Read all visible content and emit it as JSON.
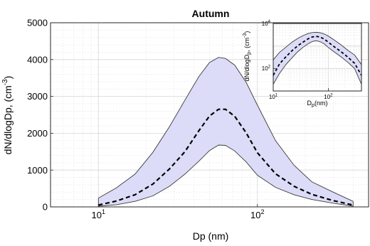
{
  "colors": {
    "band_fill": "#dcdcf8",
    "band_edge": "#3a3a3a",
    "median": "#000000",
    "grid_major": "#d6d6d6",
    "grid_minor": "#ececec",
    "axis": "#262626"
  },
  "chart_data": [
    {
      "type": "area",
      "title": "Autumn",
      "xlabel": "Dp (nm)",
      "ylabel": "dN/dlogDp, (cm",
      "ylabel_sup": "-3",
      "ylabel_close": ")",
      "xscale": "log",
      "yscale": "linear",
      "xlim": [
        5,
        500
      ],
      "ylim": [
        0,
        5000
      ],
      "grid": true,
      "xticks": [
        {
          "value": 10,
          "base": "10",
          "exp": "1"
        },
        {
          "value": 100,
          "base": "10",
          "exp": "2"
        }
      ],
      "yticks": [
        {
          "value": 0,
          "label": "0"
        },
        {
          "value": 1000,
          "label": "1000"
        },
        {
          "value": 2000,
          "label": "2000"
        },
        {
          "value": 3000,
          "label": "3000"
        },
        {
          "value": 4000,
          "label": "4000"
        },
        {
          "value": 5000,
          "label": "5000"
        }
      ],
      "x": [
        10,
        13,
        17,
        22,
        28,
        35,
        43,
        50,
        57,
        63,
        72,
        85,
        100,
        130,
        170,
        220,
        300,
        400
      ],
      "upper": [
        240,
        520,
        890,
        1480,
        2180,
        2900,
        3550,
        3920,
        4060,
        4030,
        3850,
        3380,
        2760,
        1800,
        1130,
        680,
        400,
        150
      ],
      "median": [
        50,
        160,
        330,
        620,
        1030,
        1500,
        2080,
        2470,
        2650,
        2650,
        2460,
        2010,
        1470,
        900,
        560,
        340,
        170,
        50
      ],
      "lower": [
        20,
        60,
        150,
        300,
        560,
        890,
        1250,
        1530,
        1680,
        1670,
        1520,
        1220,
        860,
        530,
        330,
        200,
        100,
        20
      ]
    },
    {
      "type": "area",
      "title": "",
      "xlabel_base": "D",
      "xlabel_sub": "p",
      "xlabel_rest": "(nm)",
      "ylabel_text": "dN/dlogD",
      "ylabel_sub": "p",
      "ylabel_rest": ", (cm",
      "ylabel_sup": "-3",
      "ylabel_close": ")",
      "xscale": "log",
      "yscale": "log",
      "xlim": [
        10,
        400
      ],
      "ylim": [
        10,
        10000
      ],
      "grid": true,
      "xticks": [
        {
          "value": 10,
          "base": "10",
          "exp": "1"
        },
        {
          "value": 100,
          "base": "10",
          "exp": "2"
        }
      ],
      "yticks": [
        {
          "value": 100,
          "base": "10",
          "exp": "2"
        },
        {
          "value": 10000,
          "base": "10",
          "exp": "4"
        }
      ],
      "x": [
        10,
        13,
        17,
        22,
        28,
        35,
        43,
        50,
        57,
        63,
        72,
        85,
        100,
        130,
        170,
        220,
        300,
        400
      ],
      "upper": [
        240,
        520,
        890,
        1480,
        2180,
        2900,
        3550,
        3920,
        4060,
        4030,
        3850,
        3380,
        2760,
        1800,
        1130,
        680,
        400,
        150
      ],
      "median": [
        50,
        160,
        330,
        620,
        1030,
        1500,
        2080,
        2470,
        2650,
        2650,
        2460,
        2010,
        1470,
        900,
        560,
        340,
        170,
        50
      ],
      "lower": [
        20,
        60,
        150,
        300,
        560,
        890,
        1250,
        1530,
        1680,
        1670,
        1520,
        1220,
        860,
        530,
        330,
        200,
        100,
        20
      ]
    }
  ]
}
